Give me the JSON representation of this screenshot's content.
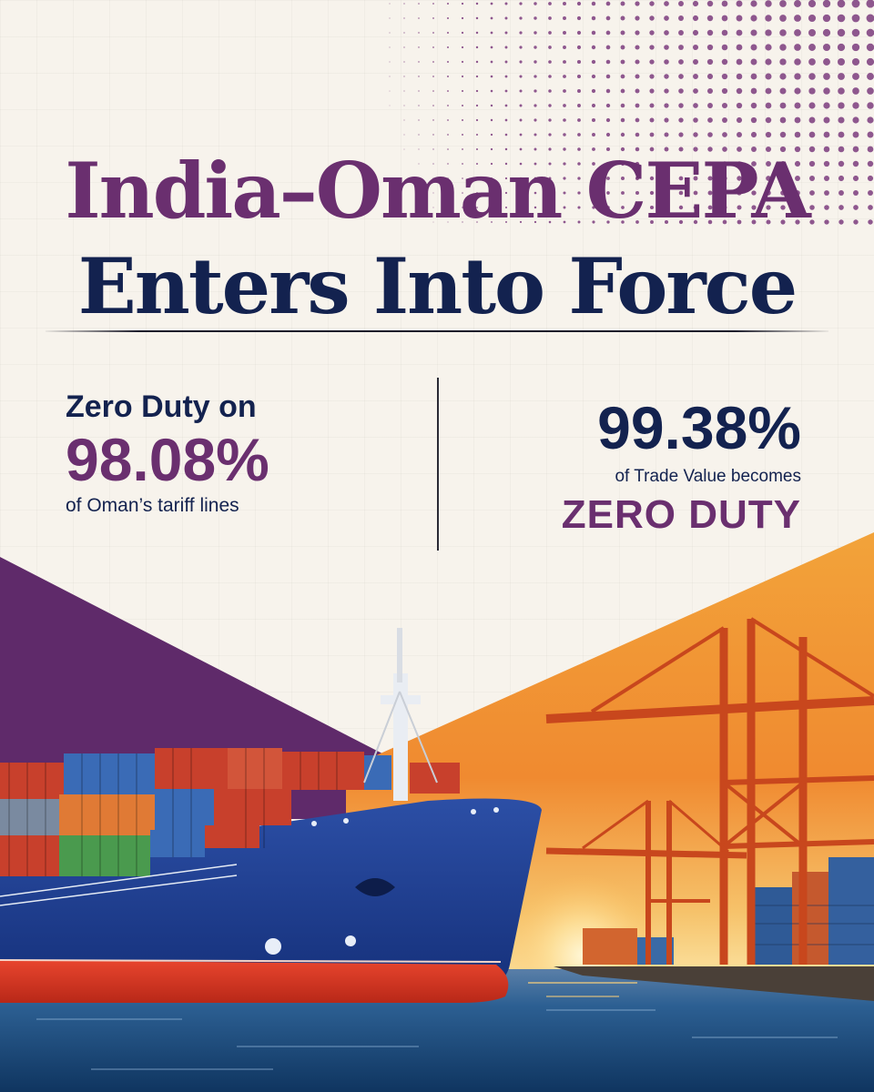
{
  "headline": {
    "line1": "India–Oman CEPA",
    "line2": "Enters Into Force"
  },
  "stat_left": {
    "intro": "Zero Duty on",
    "value": "98.08%",
    "caption": "of Oman’s tariff lines"
  },
  "stat_right": {
    "value": "99.38%",
    "caption": "of Trade Value becomes",
    "emphasis": "ZERO DUTY"
  },
  "colors": {
    "purple": "#6a2f6f",
    "navy": "#13224f",
    "orange": "#f0a032",
    "background": "#f7f3ec"
  },
  "illustration": {
    "left": "container-ship",
    "right": "port-cranes-at-sunset"
  }
}
